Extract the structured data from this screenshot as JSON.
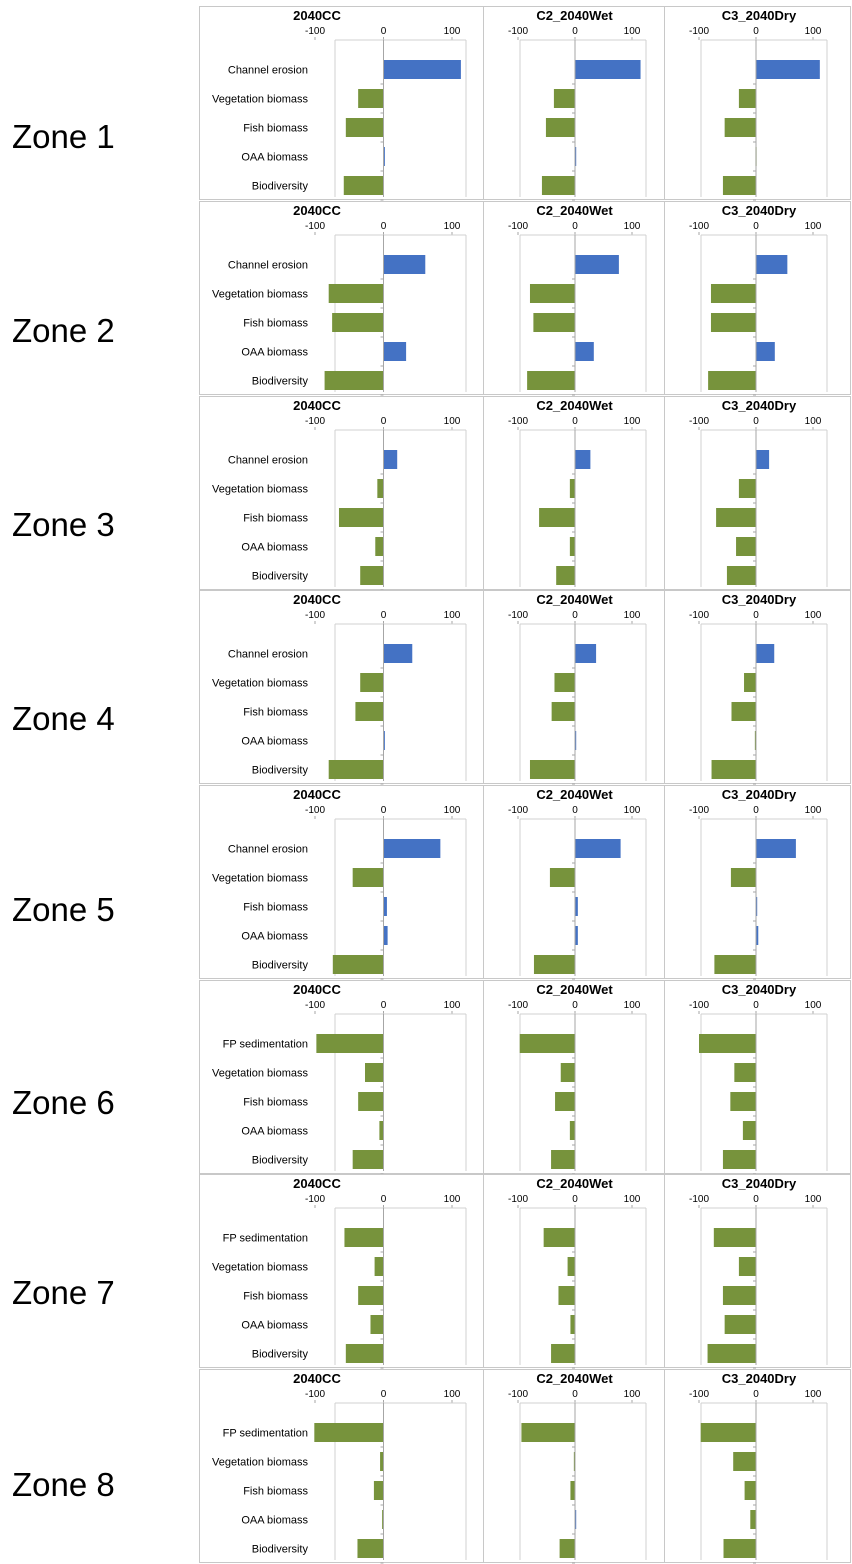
{
  "page": {
    "zones": [
      "Zone 1",
      "Zone 2",
      "Zone 3",
      "Zone 4",
      "Zone 5",
      "Zone 6",
      "Zone 7",
      "Zone 8"
    ]
  },
  "colors": {
    "positive": "#4472c4",
    "negative": "#77933c",
    "axis": "#a6a6a6"
  },
  "chart_data": [
    {
      "type": "bar",
      "orientation": "horizontal",
      "zone": "Zone 1",
      "title": "2040CC",
      "categories": [
        "Channel erosion",
        "Vegetation biomass",
        "Fish biomass",
        "OAA biomass",
        "Biodiversity"
      ],
      "values": [
        113,
        -37,
        -55,
        2,
        -58
      ],
      "xlim": [
        -100,
        100
      ],
      "xticks": [
        -100,
        0,
        100
      ]
    },
    {
      "type": "bar",
      "orientation": "horizontal",
      "zone": "Zone 1",
      "title": "C2_2040Wet",
      "categories": [
        "Channel erosion",
        "Vegetation biomass",
        "Fish biomass",
        "OAA biomass",
        "Biodiversity"
      ],
      "values": [
        115,
        -37,
        -51,
        2,
        -58
      ],
      "xlim": [
        -100,
        100
      ],
      "xticks": [
        -100,
        0,
        100
      ]
    },
    {
      "type": "bar",
      "orientation": "horizontal",
      "zone": "Zone 1",
      "title": "C3_2040Dry",
      "categories": [
        "Channel erosion",
        "Vegetation biomass",
        "Fish biomass",
        "OAA biomass",
        "Biodiversity"
      ],
      "values": [
        112,
        -30,
        -55,
        -1,
        -58
      ],
      "xlim": [
        -100,
        100
      ],
      "xticks": [
        -100,
        0,
        100
      ]
    },
    {
      "type": "bar",
      "orientation": "horizontal",
      "zone": "Zone 2",
      "title": "2040CC",
      "categories": [
        "Channel erosion",
        "Vegetation biomass",
        "Fish biomass",
        "OAA biomass",
        "Biodiversity"
      ],
      "values": [
        61,
        -80,
        -75,
        33,
        -86
      ],
      "xlim": [
        -100,
        100
      ],
      "xticks": [
        -100,
        0,
        100
      ]
    },
    {
      "type": "bar",
      "orientation": "horizontal",
      "zone": "Zone 2",
      "title": "C2_2040Wet",
      "categories": [
        "Channel erosion",
        "Vegetation biomass",
        "Fish biomass",
        "OAA biomass",
        "Biodiversity"
      ],
      "values": [
        77,
        -79,
        -73,
        33,
        -84
      ],
      "xlim": [
        -100,
        100
      ],
      "xticks": [
        -100,
        0,
        100
      ]
    },
    {
      "type": "bar",
      "orientation": "horizontal",
      "zone": "Zone 2",
      "title": "C3_2040Dry",
      "categories": [
        "Channel erosion",
        "Vegetation biomass",
        "Fish biomass",
        "OAA biomass",
        "Biodiversity"
      ],
      "values": [
        55,
        -79,
        -79,
        33,
        -84
      ],
      "xlim": [
        -100,
        100
      ],
      "xticks": [
        -100,
        0,
        100
      ]
    },
    {
      "type": "bar",
      "orientation": "horizontal",
      "zone": "Zone 3",
      "title": "2040CC",
      "categories": [
        "Channel erosion",
        "Vegetation biomass",
        "Fish biomass",
        "OAA biomass",
        "Biodiversity"
      ],
      "values": [
        20,
        -9,
        -65,
        -12,
        -34
      ],
      "xlim": [
        -100,
        100
      ],
      "xticks": [
        -100,
        0,
        100
      ]
    },
    {
      "type": "bar",
      "orientation": "horizontal",
      "zone": "Zone 3",
      "title": "C2_2040Wet",
      "categories": [
        "Channel erosion",
        "Vegetation biomass",
        "Fish biomass",
        "OAA biomass",
        "Biodiversity"
      ],
      "values": [
        27,
        -9,
        -63,
        -9,
        -33
      ],
      "xlim": [
        -100,
        100
      ],
      "xticks": [
        -100,
        0,
        100
      ]
    },
    {
      "type": "bar",
      "orientation": "horizontal",
      "zone": "Zone 3",
      "title": "C3_2040Dry",
      "categories": [
        "Channel erosion",
        "Vegetation biomass",
        "Fish biomass",
        "OAA biomass",
        "Biodiversity"
      ],
      "values": [
        23,
        -30,
        -70,
        -35,
        -51
      ],
      "xlim": [
        -100,
        100
      ],
      "xticks": [
        -100,
        0,
        100
      ]
    },
    {
      "type": "bar",
      "orientation": "horizontal",
      "zone": "Zone 4",
      "title": "2040CC",
      "categories": [
        "Channel erosion",
        "Vegetation biomass",
        "Fish biomass",
        "OAA biomass",
        "Biodiversity"
      ],
      "values": [
        42,
        -34,
        -41,
        2,
        -80
      ],
      "xlim": [
        -100,
        100
      ],
      "xticks": [
        -100,
        0,
        100
      ]
    },
    {
      "type": "bar",
      "orientation": "horizontal",
      "zone": "Zone 4",
      "title": "C2_2040Wet",
      "categories": [
        "Channel erosion",
        "Vegetation biomass",
        "Fish biomass",
        "OAA biomass",
        "Biodiversity"
      ],
      "values": [
        37,
        -36,
        -41,
        0,
        -79
      ],
      "xlim": [
        -100,
        100
      ],
      "xticks": [
        -100,
        0,
        100
      ]
    },
    {
      "type": "bar",
      "orientation": "horizontal",
      "zone": "Zone 4",
      "title": "C3_2040Dry",
      "categories": [
        "Channel erosion",
        "Vegetation biomass",
        "Fish biomass",
        "OAA biomass",
        "Biodiversity"
      ],
      "values": [
        32,
        -21,
        -43,
        -2,
        -78
      ],
      "xlim": [
        -100,
        100
      ],
      "xticks": [
        -100,
        0,
        100
      ]
    },
    {
      "type": "bar",
      "orientation": "horizontal",
      "zone": "Zone 5",
      "title": "2040CC",
      "categories": [
        "Channel erosion",
        "Vegetation biomass",
        "Fish biomass",
        "OAA biomass",
        "Biodiversity"
      ],
      "values": [
        83,
        -45,
        5,
        6,
        -74
      ],
      "xlim": [
        -100,
        100
      ],
      "xticks": [
        -100,
        0,
        100
      ]
    },
    {
      "type": "bar",
      "orientation": "horizontal",
      "zone": "Zone 5",
      "title": "C2_2040Wet",
      "categories": [
        "Channel erosion",
        "Vegetation biomass",
        "Fish biomass",
        "OAA biomass",
        "Biodiversity"
      ],
      "values": [
        80,
        -44,
        5,
        5,
        -72
      ],
      "xlim": [
        -100,
        100
      ],
      "xticks": [
        -100,
        0,
        100
      ]
    },
    {
      "type": "bar",
      "orientation": "horizontal",
      "zone": "Zone 5",
      "title": "C3_2040Dry",
      "categories": [
        "Channel erosion",
        "Vegetation biomass",
        "Fish biomass",
        "OAA biomass",
        "Biodiversity"
      ],
      "values": [
        70,
        -44,
        0,
        4,
        -73
      ],
      "xlim": [
        -100,
        100
      ],
      "xticks": [
        -100,
        0,
        100
      ]
    },
    {
      "type": "bar",
      "orientation": "horizontal",
      "zone": "Zone 6",
      "title": "2040CC",
      "categories": [
        "FP sedimentation",
        "Vegetation biomass",
        "Fish biomass",
        "OAA biomass",
        "Biodiversity"
      ],
      "values": [
        -98,
        -27,
        -37,
        -6,
        -45
      ],
      "xlim": [
        -100,
        100
      ],
      "xticks": [
        -100,
        0,
        100
      ]
    },
    {
      "type": "bar",
      "orientation": "horizontal",
      "zone": "Zone 6",
      "title": "C2_2040Wet",
      "categories": [
        "FP sedimentation",
        "Vegetation biomass",
        "Fish biomass",
        "OAA biomass",
        "Biodiversity"
      ],
      "values": [
        -97,
        -25,
        -35,
        -9,
        -42
      ],
      "xlim": [
        -100,
        100
      ],
      "xticks": [
        -100,
        0,
        100
      ]
    },
    {
      "type": "bar",
      "orientation": "horizontal",
      "zone": "Zone 6",
      "title": "C3_2040Dry",
      "categories": [
        "FP sedimentation",
        "Vegetation biomass",
        "Fish biomass",
        "OAA biomass",
        "Biodiversity"
      ],
      "values": [
        -100,
        -38,
        -45,
        -23,
        -58
      ],
      "xlim": [
        -100,
        100
      ],
      "xticks": [
        -100,
        0,
        100
      ]
    },
    {
      "type": "bar",
      "orientation": "horizontal",
      "zone": "Zone 7",
      "title": "2040CC",
      "categories": [
        "FP sedimentation",
        "Vegetation biomass",
        "Fish biomass",
        "OAA biomass",
        "Biodiversity"
      ],
      "values": [
        -57,
        -13,
        -37,
        -19,
        -55
      ],
      "xlim": [
        -100,
        100
      ],
      "xticks": [
        -100,
        0,
        100
      ]
    },
    {
      "type": "bar",
      "orientation": "horizontal",
      "zone": "Zone 7",
      "title": "C2_2040Wet",
      "categories": [
        "FP sedimentation",
        "Vegetation biomass",
        "Fish biomass",
        "OAA biomass",
        "Biodiversity"
      ],
      "values": [
        -55,
        -13,
        -29,
        -8,
        -42
      ],
      "xlim": [
        -100,
        100
      ],
      "xticks": [
        -100,
        0,
        100
      ]
    },
    {
      "type": "bar",
      "orientation": "horizontal",
      "zone": "Zone 7",
      "title": "C3_2040Dry",
      "categories": [
        "FP sedimentation",
        "Vegetation biomass",
        "Fish biomass",
        "OAA biomass",
        "Biodiversity"
      ],
      "values": [
        -74,
        -30,
        -58,
        -55,
        -85
      ],
      "xlim": [
        -100,
        100
      ],
      "xticks": [
        -100,
        0,
        100
      ]
    },
    {
      "type": "bar",
      "orientation": "horizontal",
      "zone": "Zone 8",
      "title": "2040CC",
      "categories": [
        "FP sedimentation",
        "Vegetation biomass",
        "Fish biomass",
        "OAA biomass",
        "Biodiversity"
      ],
      "values": [
        -101,
        -5,
        -14,
        -2,
        -38
      ],
      "xlim": [
        -100,
        100
      ],
      "xticks": [
        -100,
        0,
        100
      ]
    },
    {
      "type": "bar",
      "orientation": "horizontal",
      "zone": "Zone 8",
      "title": "C2_2040Wet",
      "categories": [
        "FP sedimentation",
        "Vegetation biomass",
        "Fish biomass",
        "OAA biomass",
        "Biodiversity"
      ],
      "values": [
        -94,
        -2,
        -8,
        0,
        -27
      ],
      "xlim": [
        -100,
        100
      ],
      "xticks": [
        -100,
        0,
        100
      ]
    },
    {
      "type": "bar",
      "orientation": "horizontal",
      "zone": "Zone 8",
      "title": "C3_2040Dry",
      "categories": [
        "FP sedimentation",
        "Vegetation biomass",
        "Fish biomass",
        "OAA biomass",
        "Biodiversity"
      ],
      "values": [
        -97,
        -40,
        -20,
        -10,
        -57
      ],
      "xlim": [
        -100,
        100
      ],
      "xticks": [
        -100,
        0,
        100
      ]
    }
  ]
}
